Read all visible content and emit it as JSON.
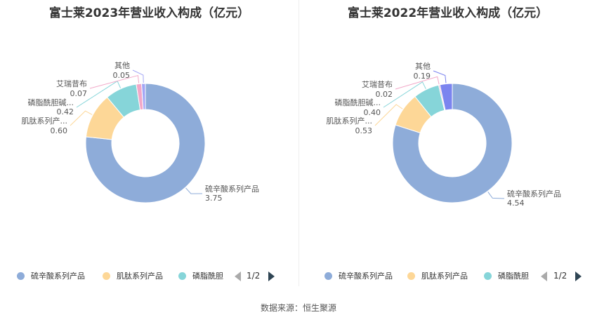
{
  "chart_data": [
    {
      "type": "pie",
      "title": "富士莱2023年营业收入构成（亿元）",
      "slices": [
        {
          "label": "硫辛酸系列产品",
          "display_label": "硫辛酸系列产品",
          "value": 3.75,
          "value_text": "3.75",
          "color": "#8eacd9"
        },
        {
          "label": "肌肽系列产品",
          "display_label": "肌肽系列产...",
          "value": 0.6,
          "value_text": "0.60",
          "color": "#fdd797"
        },
        {
          "label": "磷脂酰胆碱",
          "display_label": "磷脂酰胆碱...",
          "value": 0.42,
          "value_text": "0.42",
          "color": "#86d5d9"
        },
        {
          "label": "艾瑞昔布",
          "display_label": "艾瑞昔布",
          "value": 0.07,
          "value_text": "0.07",
          "color": "#f2a8c8"
        },
        {
          "label": "其他",
          "display_label": "其他",
          "value": 0.05,
          "value_text": "0.05",
          "color": "#a3a6f5"
        }
      ],
      "legend": {
        "items": [
          "硫辛酸系列产品",
          "肌肽系列产品",
          "磷脂酰胆"
        ],
        "page": "1/2",
        "position": "bottom"
      }
    },
    {
      "type": "pie",
      "title": "富士莱2022年营业收入构成（亿元）",
      "slices": [
        {
          "label": "硫辛酸系列产品",
          "display_label": "硫辛酸系列产品",
          "value": 4.54,
          "value_text": "4.54",
          "color": "#8eacd9"
        },
        {
          "label": "肌肽系列产品",
          "display_label": "肌肽系列产...",
          "value": 0.53,
          "value_text": "0.53",
          "color": "#fdd797"
        },
        {
          "label": "磷脂酰胆碱",
          "display_label": "磷脂酰胆碱...",
          "value": 0.4,
          "value_text": "0.40",
          "color": "#86d5d9"
        },
        {
          "label": "艾瑞昔布",
          "display_label": "艾瑞昔布",
          "value": 0.02,
          "value_text": "0.02",
          "color": "#f2a8c8"
        },
        {
          "label": "其他",
          "display_label": "其他",
          "value": 0.19,
          "value_text": "0.19",
          "color": "#7b84ef"
        }
      ],
      "legend": {
        "items": [
          "硫辛酸系列产品",
          "肌肽系列产品",
          "磷脂酰胆"
        ],
        "page": "1/2",
        "position": "bottom"
      }
    }
  ],
  "footer": {
    "source": "数据来源：恒生聚源"
  }
}
